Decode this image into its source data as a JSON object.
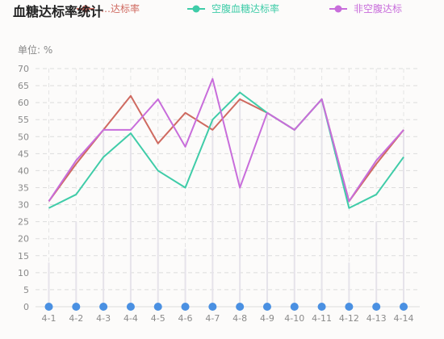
{
  "chart_data": {
    "type": "line",
    "title": "血糖达标率统计",
    "unit_label": "单位: %",
    "categories": [
      "4-1",
      "4-2",
      "4-3",
      "4-4",
      "4-5",
      "4-6",
      "4-7",
      "4-8",
      "4-9",
      "4-10",
      "4-11",
      "4-12",
      "4-13",
      "4-14"
    ],
    "ylim": [
      0,
      70
    ],
    "yticks": [
      0,
      5,
      10,
      15,
      20,
      25,
      30,
      35,
      40,
      45,
      50,
      55,
      60,
      65,
      70
    ],
    "grid": true,
    "legend_position": "top",
    "series": [
      {
        "name": "…达标率",
        "color": "#cf6a60",
        "values": [
          31,
          42,
          52,
          62,
          48,
          57,
          52,
          61,
          57,
          52,
          61,
          31,
          42,
          52
        ]
      },
      {
        "name": "空腹血糖达标率",
        "color": "#3fcca8",
        "values": [
          29,
          33,
          44,
          51,
          40,
          35,
          55,
          63,
          57,
          52,
          61,
          29,
          33,
          44
        ]
      },
      {
        "name": "非空腹达标",
        "color": "#c86ddb",
        "values": [
          31,
          43,
          52,
          52,
          61,
          47,
          67,
          35,
          57,
          52,
          61,
          31,
          43,
          52
        ]
      }
    ],
    "bar_series": {
      "color": "#4a90e2",
      "values": [
        13,
        25,
        52,
        51,
        40,
        17,
        55,
        61,
        57,
        52,
        61,
        13,
        25,
        52
      ]
    }
  }
}
